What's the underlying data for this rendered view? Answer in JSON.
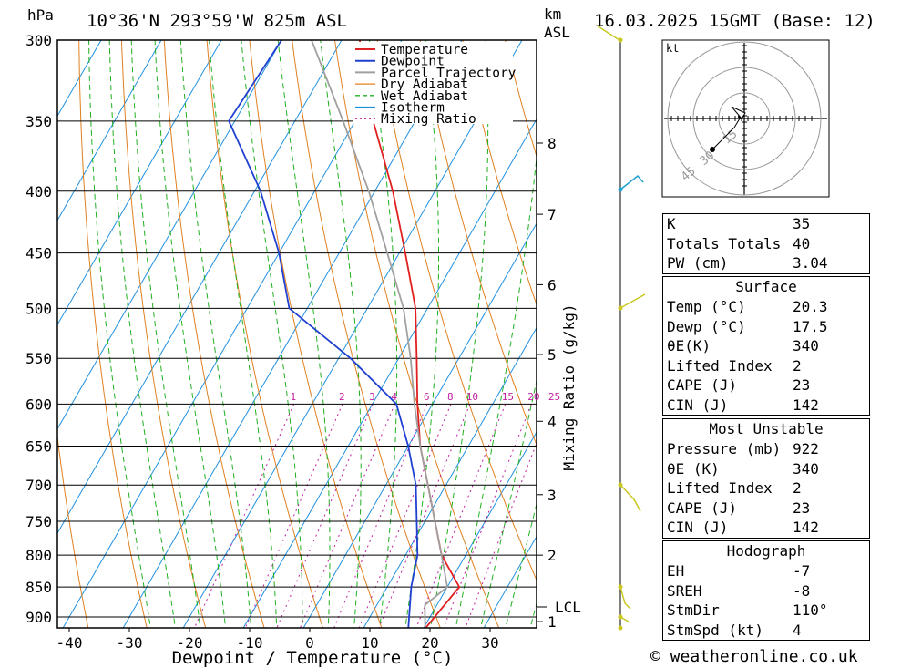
{
  "header": {
    "pressure_unit": "hPa",
    "location": "10°36'N  293°59'W  825m  ASL",
    "km_label": "km",
    "asl_label": "ASL",
    "datetime": "16.03.2025  15GMT  (Base: 12)"
  },
  "colors": {
    "temperature": "#e02020",
    "dewpoint": "#2040d0",
    "parcel": "#a0a0a0",
    "dry_adiabat": "#e08020",
    "wet_adiabat": "#20b020",
    "isotherm": "#2090e0",
    "mixing_ratio": "#c020a0",
    "wind": "#c8c820"
  },
  "chart_data": {
    "type": "line",
    "xlabel": "Dewpoint / Temperature (°C)",
    "ylabel_right": "Mixing Ratio (g/kg)",
    "x_ticks": [
      "-40",
      "-30",
      "-20",
      "-10",
      "0",
      "10",
      "20",
      "30"
    ],
    "pressure_levels": [
      "300",
      "350",
      "400",
      "450",
      "500",
      "550",
      "600",
      "650",
      "700",
      "750",
      "800",
      "850",
      "900"
    ],
    "km_ticks": [
      "8",
      "7",
      "6",
      "5",
      "4",
      "3",
      "2",
      "1"
    ],
    "lcl_label": "LCL",
    "mixing_ratio_labels": [
      "1",
      "2",
      "3",
      "4",
      "6",
      "8",
      "10",
      "15",
      "20",
      "25"
    ],
    "legend": [
      "Temperature",
      "Dewpoint",
      "Parcel Trajectory",
      "Dry Adiabat",
      "Wet Adiabat",
      "Isotherm",
      "Mixing Ratio"
    ],
    "series": [
      {
        "name": "Temperature",
        "points": [
          [
            920,
            20.3
          ],
          [
            850,
            22
          ],
          [
            800,
            16
          ],
          [
            700,
            7
          ],
          [
            650,
            2
          ],
          [
            600,
            -2.5
          ],
          [
            550,
            -7
          ],
          [
            500,
            -12
          ],
          [
            450,
            -19
          ],
          [
            400,
            -27
          ],
          [
            350,
            -37
          ],
          [
            300,
            -47
          ]
        ]
      },
      {
        "name": "Dewpoint",
        "points": [
          [
            920,
            17.5
          ],
          [
            850,
            14
          ],
          [
            800,
            12
          ],
          [
            700,
            5
          ],
          [
            650,
            0
          ],
          [
            600,
            -6
          ],
          [
            550,
            -18
          ],
          [
            500,
            -33
          ],
          [
            450,
            -40
          ],
          [
            400,
            -49
          ],
          [
            350,
            -61
          ],
          [
            300,
            -60
          ]
        ]
      },
      {
        "name": "Parcel Trajectory",
        "points": [
          [
            920,
            20.3
          ],
          [
            880,
            18
          ],
          [
            850,
            20
          ],
          [
            800,
            16
          ],
          [
            700,
            7
          ],
          [
            650,
            2
          ],
          [
            600,
            -3
          ],
          [
            550,
            -8
          ],
          [
            500,
            -14
          ],
          [
            450,
            -22
          ],
          [
            400,
            -31
          ],
          [
            350,
            -42
          ],
          [
            300,
            -55
          ]
        ]
      }
    ],
    "grid": true
  },
  "hodograph": {
    "unit": "kt",
    "ring_labels": [
      "45",
      "30",
      "15"
    ]
  },
  "indices": {
    "rows": [
      {
        "label": "K",
        "value": "35"
      },
      {
        "label": "Totals Totals",
        "value": "40"
      },
      {
        "label": "PW (cm)",
        "value": "3.04"
      }
    ]
  },
  "surface": {
    "title": "Surface",
    "rows": [
      {
        "label": "Temp (°C)",
        "value": "20.3"
      },
      {
        "label": "Dewp (°C)",
        "value": "17.5"
      },
      {
        "label": "θE(K)",
        "value": "340"
      },
      {
        "label": "Lifted Index",
        "value": "2"
      },
      {
        "label": "CAPE (J)",
        "value": "23"
      },
      {
        "label": "CIN (J)",
        "value": "142"
      }
    ]
  },
  "most_unstable": {
    "title": "Most Unstable",
    "rows": [
      {
        "label": "Pressure (mb)",
        "value": "922"
      },
      {
        "label": "θE (K)",
        "value": "340"
      },
      {
        "label": "Lifted Index",
        "value": "2"
      },
      {
        "label": "CAPE (J)",
        "value": "23"
      },
      {
        "label": "CIN (J)",
        "value": "142"
      }
    ]
  },
  "hodograph_stats": {
    "title": "Hodograph",
    "rows": [
      {
        "label": "EH",
        "value": "-7"
      },
      {
        "label": "SREH",
        "value": "-8"
      },
      {
        "label": "StmDir",
        "value": "110°"
      },
      {
        "label": "StmSpd (kt)",
        "value": "4"
      }
    ]
  },
  "footer": {
    "copyright": "© weatheronline.co.uk"
  }
}
